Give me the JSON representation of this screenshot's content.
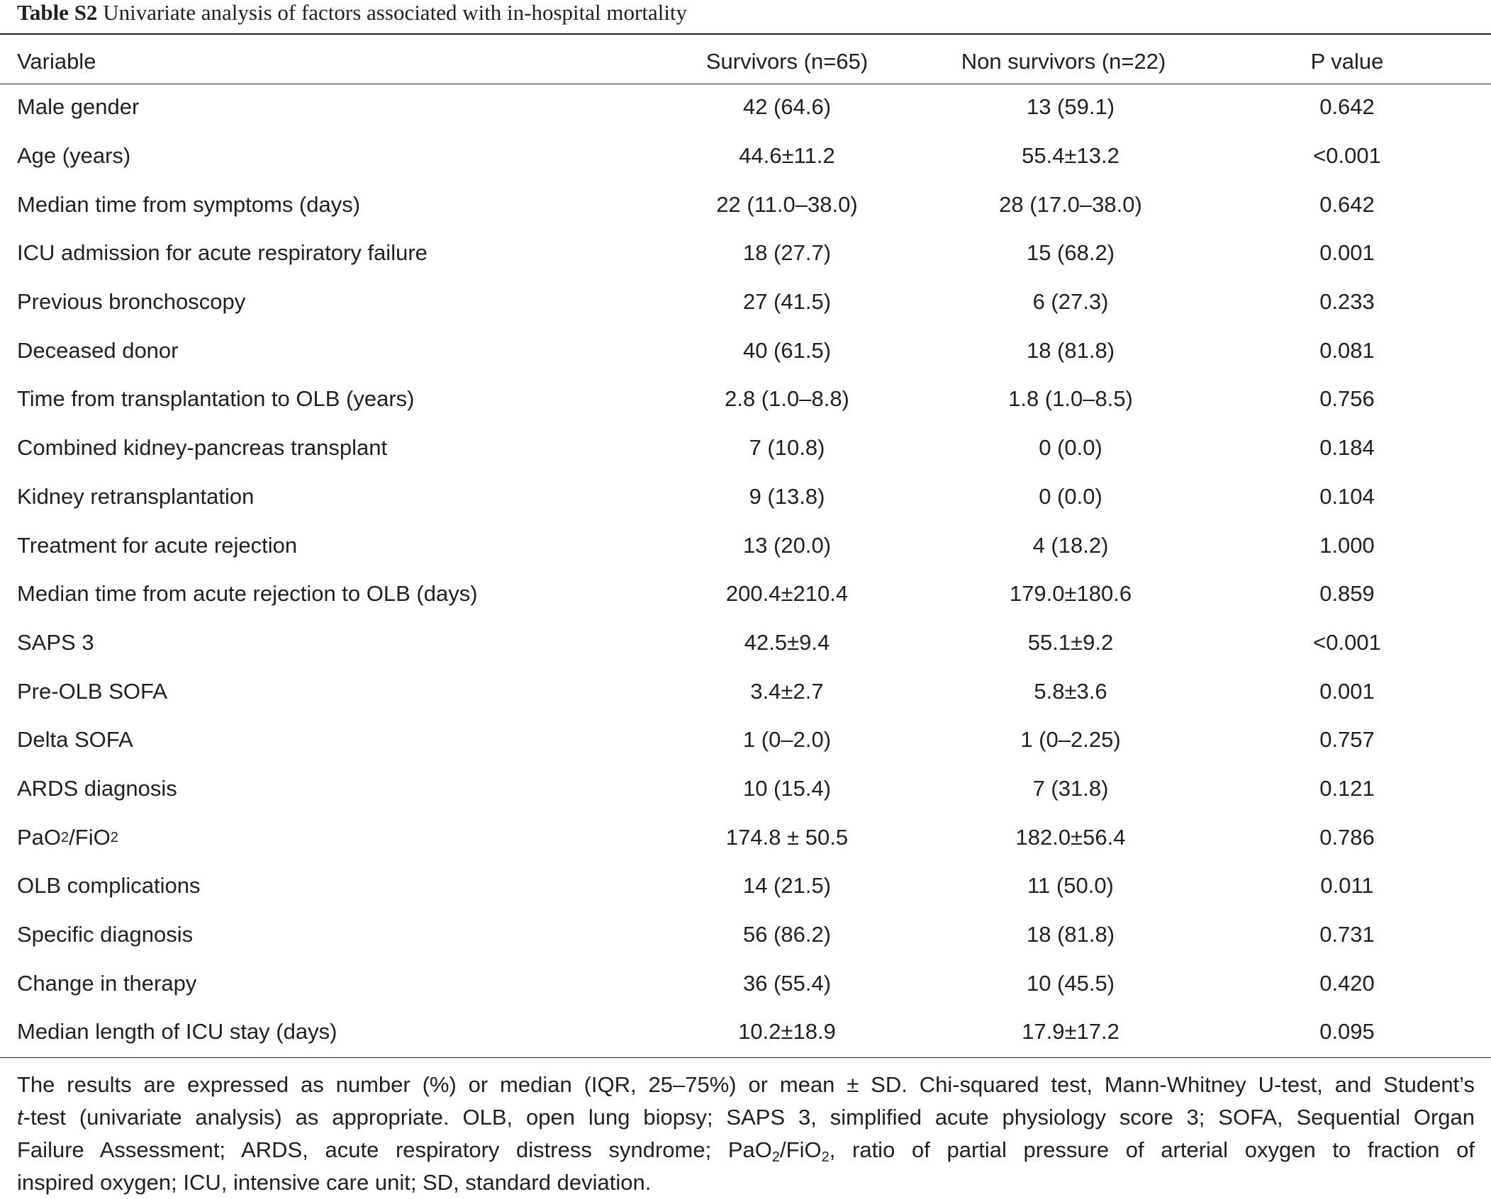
{
  "caption": {
    "label": "Table S2",
    "title": "Univariate analysis of factors associated with in-hospital mortality"
  },
  "table": {
    "headers": [
      "Variable",
      "Survivors (n=65)",
      "Non survivors (n=22)",
      "P value"
    ],
    "rows": [
      {
        "variable": "Male gender",
        "survivors": "42 (64.6)",
        "non_survivors": "13 (59.1)",
        "p_value": "0.642"
      },
      {
        "variable": "Age (years)",
        "survivors": "44.6±11.2",
        "non_survivors": "55.4±13.2",
        "p_value": "<0.001"
      },
      {
        "variable": "Median time from symptoms (days)",
        "survivors": "22 (11.0–38.0)",
        "non_survivors": "28 (17.0–38.0)",
        "p_value": "0.642"
      },
      {
        "variable": "ICU admission for acute respiratory failure",
        "survivors": "18 (27.7)",
        "non_survivors": "15 (68.2)",
        "p_value": "0.001"
      },
      {
        "variable": "Previous bronchoscopy",
        "survivors": "27 (41.5)",
        "non_survivors": "6 (27.3)",
        "p_value": "0.233"
      },
      {
        "variable": "Deceased donor",
        "survivors": "40 (61.5)",
        "non_survivors": "18 (81.8)",
        "p_value": "0.081"
      },
      {
        "variable": "Time from transplantation to OLB (years)",
        "survivors": "2.8 (1.0–8.8)",
        "non_survivors": "1.8 (1.0–8.5)",
        "p_value": "0.756"
      },
      {
        "variable": "Combined kidney-pancreas transplant",
        "survivors": "7 (10.8)",
        "non_survivors": "0 (0.0)",
        "p_value": "0.184"
      },
      {
        "variable": "Kidney retransplantation",
        "survivors": "9 (13.8)",
        "non_survivors": "0 (0.0)",
        "p_value": "0.104"
      },
      {
        "variable": "Treatment for acute rejection",
        "survivors": "13 (20.0)",
        "non_survivors": "4 (18.2)",
        "p_value": "1.000"
      },
      {
        "variable": "Median time from acute rejection to OLB (days)",
        "survivors": "200.4±210.4",
        "non_survivors": "179.0±180.6",
        "p_value": "0.859"
      },
      {
        "variable": "SAPS 3",
        "survivors": "42.5±9.4",
        "non_survivors": "55.1±9.2",
        "p_value": "<0.001"
      },
      {
        "variable": "Pre-OLB SOFA",
        "survivors": "3.4±2.7",
        "non_survivors": "5.8±3.6",
        "p_value": "0.001"
      },
      {
        "variable": "Delta SOFA",
        "survivors": "1 (0–2.0)",
        "non_survivors": "1 (0–2.25)",
        "p_value": "0.757"
      },
      {
        "variable": "ARDS diagnosis",
        "survivors": "10 (15.4)",
        "non_survivors": "7 (31.8)",
        "p_value": "0.121"
      },
      {
        "variable": "PaO2/FiO2",
        "variable_parts": [
          "PaO",
          "2",
          "/FiO",
          "2"
        ],
        "survivors": "174.8 ± 50.5",
        "non_survivors": "182.0±56.4",
        "p_value": "0.786"
      },
      {
        "variable": "OLB complications",
        "survivors": "14 (21.5)",
        "non_survivors": "11 (50.0)",
        "p_value": "0.011"
      },
      {
        "variable": "Specific diagnosis",
        "survivors": "56 (86.2)",
        "non_survivors": "18 (81.8)",
        "p_value": "0.731"
      },
      {
        "variable": "Change in therapy",
        "survivors": "36 (55.4)",
        "non_survivors": "10 (45.5)",
        "p_value": "0.420"
      },
      {
        "variable": "Median length of ICU stay (days)",
        "survivors": "10.2±18.9",
        "non_survivors": "17.9±17.2",
        "p_value": "0.095"
      }
    ]
  },
  "footnote": {
    "line1": "The results are expressed as number (%) or median (IQR, 25–75%) or mean ± SD. Chi-squared test, Mann-Whitney U-test, and Student’s",
    "line2_italic": "t",
    "line2": "-test (univariate analysis) as appropriate. OLB, open lung biopsy; SAPS 3, simplified acute physiology score 3; SOFA, Sequential Organ",
    "line3a": "Failure Assessment; ARDS, acute respiratory distress syndrome; PaO",
    "line3_sub1": "2",
    "line3b": "/FiO",
    "line3_sub2": "2",
    "line3c": ", ratio of partial pressure of arterial oxygen to fraction of",
    "line4": "inspired oxygen; ICU, intensive care unit; SD, standard deviation."
  }
}
